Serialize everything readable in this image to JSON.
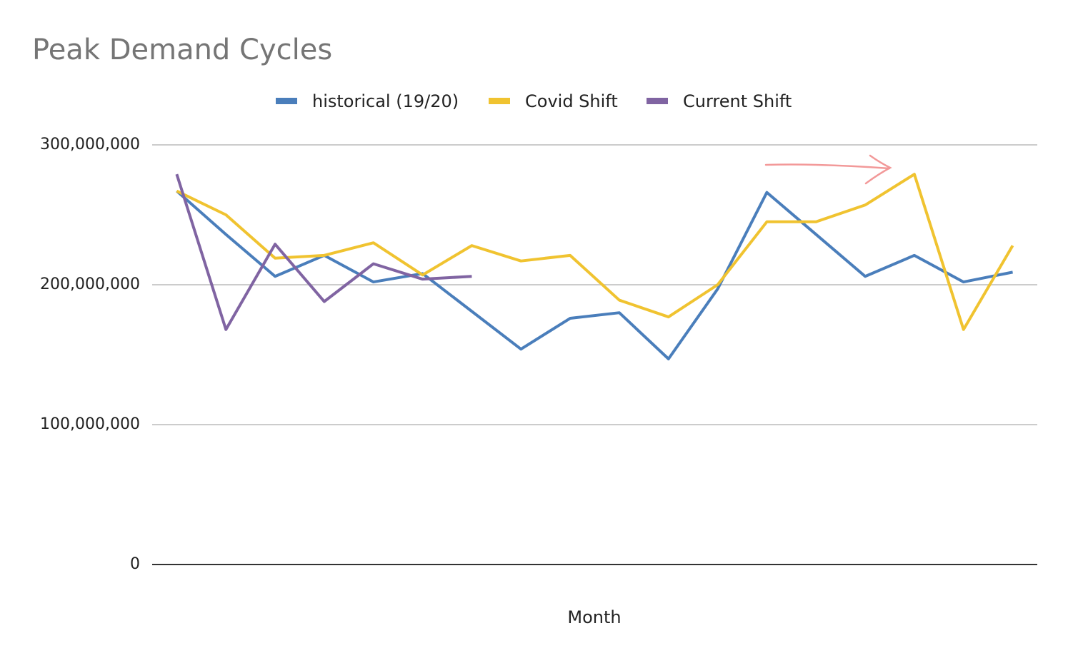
{
  "chart_data": {
    "type": "line",
    "title": "Peak Demand Cycles",
    "x_label": "Month",
    "categories": [
      null,
      null,
      null,
      null,
      null,
      null,
      null,
      null,
      null,
      null,
      null,
      null,
      null,
      null,
      null,
      null,
      null,
      null
    ],
    "series": [
      {
        "name": "historical (19/20)",
        "color": "#4a7ebb",
        "values": [
          267000000,
          236000000,
          206000000,
          221000000,
          202000000,
          208000000,
          181000000,
          154000000,
          176000000,
          180000000,
          147000000,
          197000000,
          266000000,
          236000000,
          206000000,
          221000000,
          202000000,
          209000000
        ]
      },
      {
        "name": "Covid Shift",
        "color": "#f0c330",
        "values": [
          267000000,
          250000000,
          219000000,
          221000000,
          230000000,
          207000000,
          228000000,
          217000000,
          221000000,
          189000000,
          177000000,
          200000000,
          245000000,
          245000000,
          257000000,
          279000000,
          168000000,
          228000000
        ]
      },
      {
        "name": "Current Shift",
        "color": "#8064a2",
        "values": [
          279000000,
          168000000,
          229000000,
          188000000,
          215000000,
          204000000,
          206000000,
          null,
          null,
          null,
          null,
          null,
          null,
          null,
          null,
          null,
          null,
          null
        ]
      }
    ],
    "ylim": [
      0,
      300000000
    ],
    "yticks": [
      0,
      {
        "value": 100000000,
        "label": "100,000,000"
      },
      {
        "value": 200000000,
        "label": "200,000,000"
      },
      {
        "value": 300000000,
        "label": "300,000,000"
      }
    ],
    "grid": true,
    "legend": "top"
  }
}
